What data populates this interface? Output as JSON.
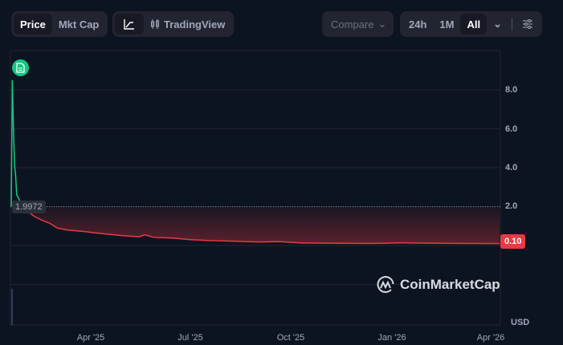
{
  "toolbar": {
    "type_toggle": [
      {
        "label": "Price",
        "active": true
      },
      {
        "label": "Mkt Cap",
        "active": false
      }
    ],
    "chart_style": {
      "line_icon": "line-chart-icon",
      "tradingview_label": "TradingView",
      "tradingview_icon": "candlestick-icon"
    },
    "compare_label": "Compare",
    "ranges": [
      {
        "label": "24h",
        "active": false
      },
      {
        "label": "1M",
        "active": false
      },
      {
        "label": "All",
        "active": true
      }
    ],
    "more_icon": "chevron-down-icon",
    "settings_icon": "sliders-icon"
  },
  "chart_data": {
    "type": "line",
    "currency": "USD",
    "baseline": 1.9972,
    "baseline_label": "1.9972",
    "current_price_label": "0.10",
    "y_ticks": [
      "8.0",
      "6.0",
      "4.0",
      "2.0"
    ],
    "ylim": [
      0,
      10.5
    ],
    "x_ticks": [
      {
        "label": "Apr '25",
        "date": "2025-04-01"
      },
      {
        "label": "Jul '25",
        "date": "2025-07-01"
      },
      {
        "label": "Oct '25",
        "date": "2025-10-01"
      },
      {
        "label": "Jan '26",
        "date": "2026-01-01"
      },
      {
        "label": "Apr '26",
        "date": "2026-04-01"
      }
    ],
    "xlim": [
      "2025-01-18",
      "2026-04-09"
    ],
    "points": [
      [
        "2025-01-18",
        1.9972
      ],
      [
        "2025-01-19",
        8.5
      ],
      [
        "2025-01-20",
        6.0
      ],
      [
        "2025-01-21",
        4.2
      ],
      [
        "2025-01-22",
        3.6
      ],
      [
        "2025-01-23",
        2.6
      ],
      [
        "2025-01-25",
        2.4
      ],
      [
        "2025-01-27",
        2.1
      ],
      [
        "2025-02-01",
        1.8
      ],
      [
        "2025-02-08",
        1.5
      ],
      [
        "2025-02-15",
        1.3
      ],
      [
        "2025-02-22",
        1.15
      ],
      [
        "2025-03-01",
        0.9
      ],
      [
        "2025-03-10",
        0.8
      ],
      [
        "2025-03-25",
        0.72
      ],
      [
        "2025-04-10",
        0.62
      ],
      [
        "2025-05-01",
        0.5
      ],
      [
        "2025-05-15",
        0.45
      ],
      [
        "2025-05-20",
        0.55
      ],
      [
        "2025-05-28",
        0.42
      ],
      [
        "2025-06-15",
        0.38
      ],
      [
        "2025-07-01",
        0.3
      ],
      [
        "2025-07-20",
        0.25
      ],
      [
        "2025-08-10",
        0.22
      ],
      [
        "2025-09-01",
        0.18
      ],
      [
        "2025-09-20",
        0.2
      ],
      [
        "2025-10-10",
        0.13
      ],
      [
        "2025-11-01",
        0.12
      ],
      [
        "2025-12-01",
        0.11
      ],
      [
        "2025-12-20",
        0.11
      ],
      [
        "2026-01-10",
        0.14
      ],
      [
        "2026-02-01",
        0.12
      ],
      [
        "2026-03-01",
        0.11
      ],
      [
        "2026-04-09",
        0.1
      ]
    ],
    "colors": {
      "up": "#16c784",
      "down": "#ea3943",
      "grid": "#222531"
    }
  },
  "note_icon": "document-icon",
  "watermark": "CoinMarketCap"
}
